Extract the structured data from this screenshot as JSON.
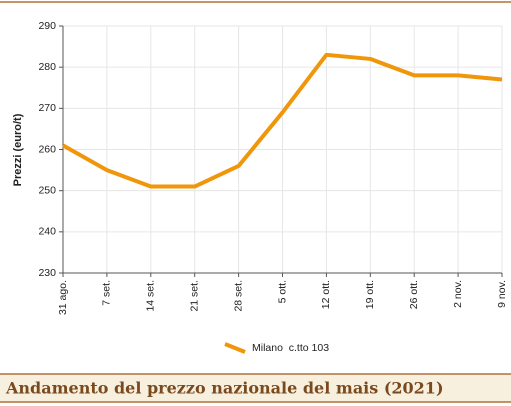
{
  "chart_data": {
    "type": "line",
    "title": "Andamento del prezzo nazionale del mais (2021)",
    "y_label": "Prezzi (euro/t)",
    "categories": [
      "31 ago.",
      "7 set.",
      "14 set.",
      "21 set.",
      "28 set.",
      "5 ott.",
      "12 ott.",
      "19 ott.",
      "26 ott.",
      "2 nov.",
      "9 nov."
    ],
    "series": [
      {
        "name": "Milano  c.tto 103",
        "color": "#f0960a",
        "values": [
          261,
          255,
          251,
          251,
          256,
          269,
          283,
          282,
          278,
          278,
          277
        ]
      }
    ],
    "ylim": [
      230,
      290
    ],
    "yticks": [
      230,
      240,
      250,
      260,
      270,
      280,
      290
    ],
    "grid": true
  }
}
